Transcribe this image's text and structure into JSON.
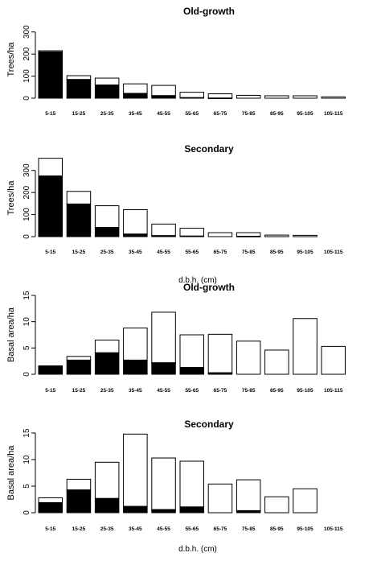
{
  "chart_data": [
    {
      "type": "bar",
      "stacked": true,
      "title": "Old-growth",
      "ylabel": "Trees/ha",
      "xlabel": "",
      "ylim": [
        0,
        350
      ],
      "yticks": [
        0,
        100,
        200,
        300
      ],
      "categories": [
        "5-15",
        "15-25",
        "25-35",
        "35-45",
        "45-55",
        "55-65",
        "65-75",
        "75-85",
        "85-95",
        "95-105",
        "105-115"
      ],
      "series": [
        {
          "color": "#000000",
          "values": [
            210,
            85,
            60,
            22,
            12,
            3,
            1,
            0,
            0,
            0,
            0
          ]
        },
        {
          "color": "#ffffff",
          "values": [
            5,
            17,
            31,
            43,
            46,
            24,
            19,
            13,
            11,
            11,
            6
          ]
        }
      ]
    },
    {
      "type": "bar",
      "stacked": true,
      "title": "Secondary",
      "ylabel": "Trees/ha",
      "xlabel": "d.b.h. (cm)",
      "ylim": [
        0,
        350
      ],
      "yticks": [
        0,
        100,
        200,
        300
      ],
      "categories": [
        "5-15",
        "15-25",
        "25-35",
        "35-45",
        "45-55",
        "55-65",
        "65-75",
        "75-85",
        "85-95",
        "95-105",
        "105-115"
      ],
      "series": [
        {
          "color": "#000000",
          "values": [
            275,
            148,
            42,
            12,
            5,
            3,
            0,
            2,
            0,
            0,
            0
          ]
        },
        {
          "color": "#ffffff",
          "values": [
            80,
            57,
            98,
            110,
            52,
            35,
            18,
            16,
            7,
            6,
            0
          ]
        }
      ]
    },
    {
      "type": "bar",
      "stacked": true,
      "title": "Old-growth",
      "ylabel": "Basal area/ha",
      "xlabel": "",
      "ylim": [
        0,
        15
      ],
      "yticks": [
        0,
        5,
        10,
        15
      ],
      "categories": [
        "5-15",
        "15-25",
        "25-35",
        "35-45",
        "45-55",
        "55-65",
        "65-75",
        "75-85",
        "85-95",
        "95-105",
        "105-115"
      ],
      "series": [
        {
          "color": "#000000",
          "values": [
            1.6,
            2.7,
            4.1,
            2.7,
            2.2,
            1.3,
            0.3,
            0,
            0,
            0,
            0
          ]
        },
        {
          "color": "#ffffff",
          "values": [
            0,
            0.7,
            2.4,
            6.1,
            9.6,
            6.2,
            7.3,
            6.3,
            4.6,
            10.6,
            5.3
          ]
        }
      ]
    },
    {
      "type": "bar",
      "stacked": true,
      "title": "Secondary",
      "ylabel": "Basal area/ha",
      "xlabel": "d.b.h. (cm)",
      "ylim": [
        0,
        15
      ],
      "yticks": [
        0,
        5,
        10,
        15
      ],
      "categories": [
        "5-15",
        "15-25",
        "25-35",
        "35-45",
        "45-55",
        "55-65",
        "65-75",
        "75-85",
        "85-95",
        "95-105",
        "105-115"
      ],
      "series": [
        {
          "color": "#000000",
          "values": [
            1.9,
            4.3,
            2.7,
            1.2,
            0.6,
            1.1,
            0,
            0.4,
            0,
            0,
            0
          ]
        },
        {
          "color": "#ffffff",
          "values": [
            0.9,
            2.0,
            6.8,
            13.6,
            9.7,
            8.6,
            5.4,
            5.8,
            3.0,
            4.5,
            0
          ]
        }
      ]
    }
  ]
}
